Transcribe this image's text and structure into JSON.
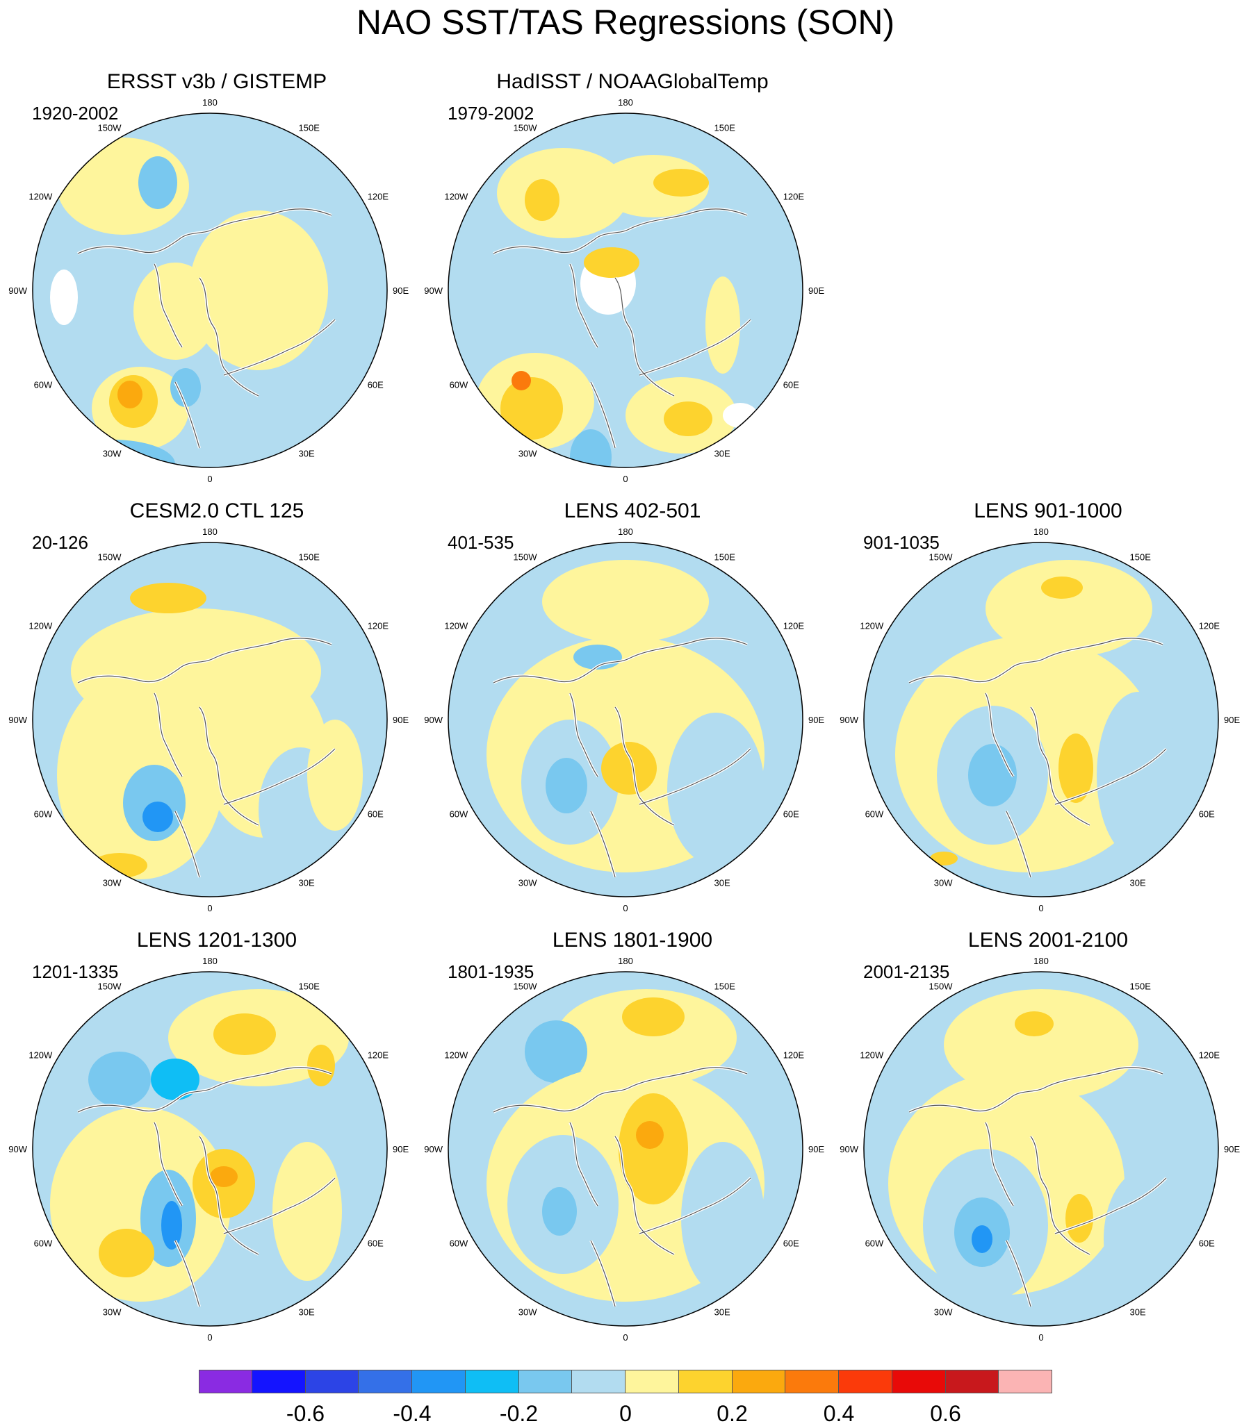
{
  "title": "NAO SST/TAS Regressions (SON)",
  "longitude_labels": [
    "180",
    "150E",
    "120E",
    "90E",
    "60E",
    "30E",
    "0",
    "30W",
    "60W",
    "90W",
    "120W",
    "150W"
  ],
  "panels": [
    {
      "title": "ERSST v3b / GISTEMP",
      "period": "1920-2002",
      "row": 0,
      "col": 0
    },
    {
      "title": "HadISST / NOAAGlobalTemp",
      "period": "1979-2002",
      "row": 0,
      "col": 1
    },
    {
      "title": "CESM2.0 CTL 125",
      "period": "20-126",
      "row": 1,
      "col": 0
    },
    {
      "title": "LENS 402-501",
      "period": "401-535",
      "row": 1,
      "col": 1
    },
    {
      "title": "LENS 901-1000",
      "period": "901-1035",
      "row": 1,
      "col": 2
    },
    {
      "title": "LENS 1201-1300",
      "period": "1201-1335",
      "row": 2,
      "col": 0
    },
    {
      "title": "LENS 1801-1900",
      "period": "1801-1935",
      "row": 2,
      "col": 1
    },
    {
      "title": "LENS 2001-2100",
      "period": "2001-2135",
      "row": 2,
      "col": 2
    }
  ],
  "colorbar": {
    "colors": [
      "#8a2be2",
      "#1414ff",
      "#2c44e6",
      "#3470e8",
      "#2196f5",
      "#0fbef5",
      "#79c8ef",
      "#b2dcf0",
      "#fef59c",
      "#fdd32e",
      "#fba90e",
      "#fb7a0c",
      "#fb3a0a",
      "#e80a08",
      "#c8181c",
      "#fbb4b4"
    ],
    "labels": [
      "-0.6",
      "-0.4",
      "-0.2",
      "0",
      "0.2",
      "0.4",
      "0.6"
    ]
  }
}
